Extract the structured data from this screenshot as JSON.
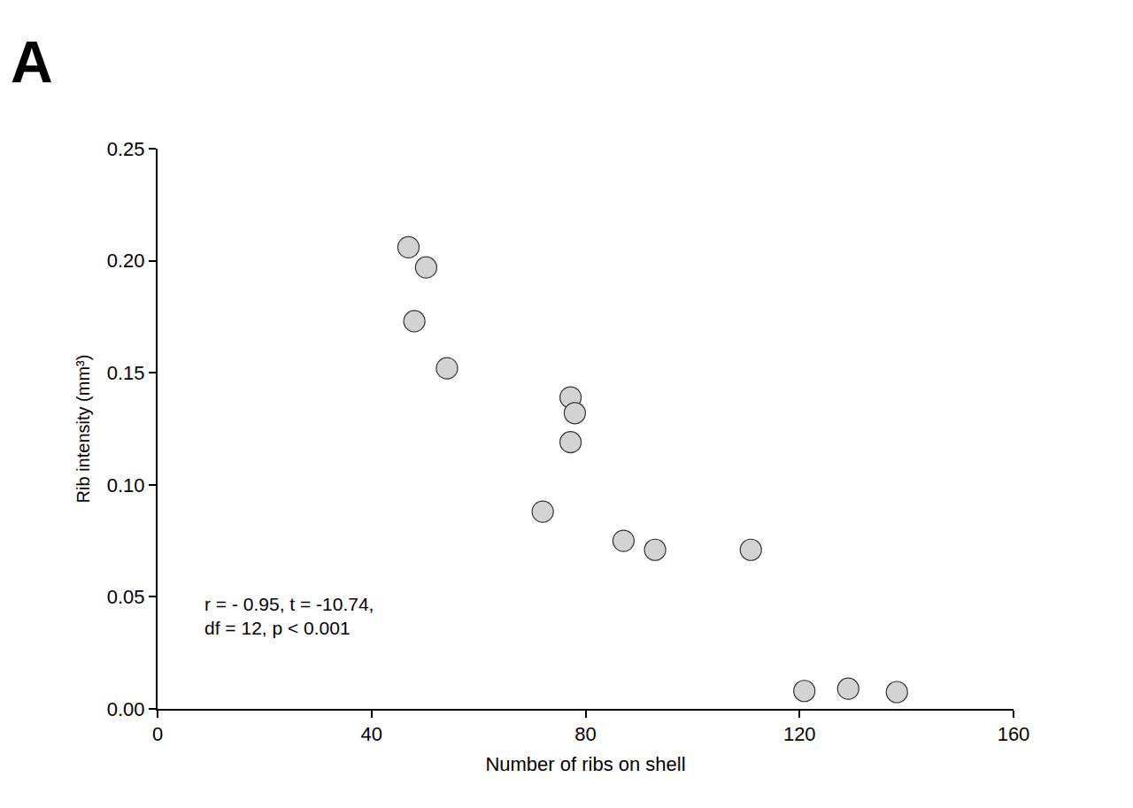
{
  "chart_data": {
    "type": "scatter",
    "panel_label": "A",
    "x_label": "Number of ribs on shell",
    "y_label": "Rib intensity (mm³)",
    "x": [
      46.9,
      50.2,
      48.0,
      54.1,
      77.2,
      78.0,
      77.2,
      72.0,
      87.1,
      93.0,
      110.9,
      120.9,
      129.1,
      138.2
    ],
    "values": [
      0.206,
      0.197,
      0.173,
      0.152,
      0.139,
      0.132,
      0.119,
      0.088,
      0.075,
      0.071,
      0.071,
      0.008,
      0.009,
      0.0075
    ],
    "color": "#d3d3d3",
    "marker": "circle",
    "xlim": [
      0,
      160
    ],
    "xticks": [
      0,
      40,
      80,
      120,
      160
    ],
    "ylim": [
      0,
      0.25
    ],
    "yticks": [
      {
        "value": 0,
        "label": "0.00"
      },
      {
        "value": 0.05,
        "label": "0.05"
      },
      {
        "value": 0.1,
        "label": "0.10"
      },
      {
        "value": 0.15,
        "label": "0.15"
      },
      {
        "value": 0.2,
        "label": "0.20"
      },
      {
        "value": 0.25,
        "label": "0.25"
      }
    ],
    "grid": false,
    "annotations": [
      "r = - 0.95, t = -10.74,",
      "df = 12, p < 0.001"
    ]
  }
}
